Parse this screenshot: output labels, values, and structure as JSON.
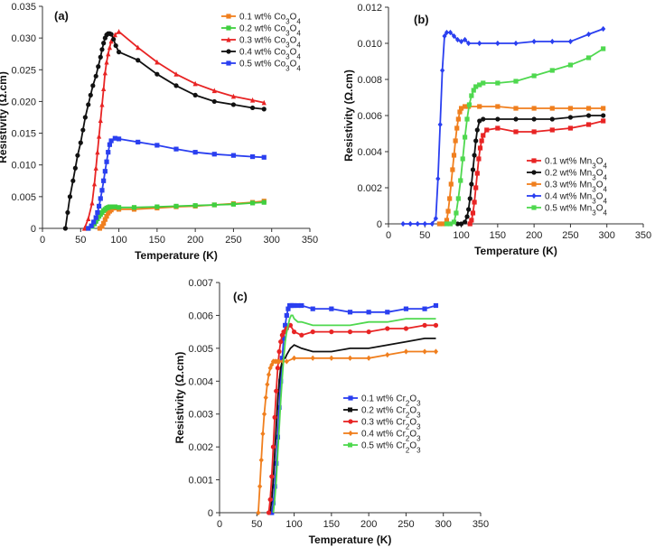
{
  "chart_data": [
    {
      "type": "line",
      "panel_label": "(a)",
      "xlabel": "Temperature (K)",
      "ylabel": "Resistivity (Ω.cm)",
      "xlim": [
        0,
        350
      ],
      "ylim": [
        0,
        0.035
      ],
      "xticks": [
        "0",
        "50",
        "100",
        "150",
        "200",
        "250",
        "300",
        "350"
      ],
      "yticks": [
        "0",
        "0.005",
        "0.010",
        "0.015",
        "0.020",
        "0.025",
        "0.030",
        "0.035"
      ],
      "legend_position": "top-right",
      "series": [
        {
          "name": "0.1 wt% Co3O4",
          "color": "#f07f1e",
          "marker": "square",
          "x": [
            75,
            78,
            80,
            82,
            84,
            86,
            88,
            90,
            100,
            120,
            150,
            175,
            200,
            225,
            250,
            275,
            290
          ],
          "y": [
            0,
            0.0003,
            0.0008,
            0.0014,
            0.0019,
            0.0024,
            0.0027,
            0.0029,
            0.003,
            0.003,
            0.0032,
            0.0034,
            0.0035,
            0.0037,
            0.0039,
            0.0041,
            0.0043
          ]
        },
        {
          "name": "0.2 wt% Co3O4",
          "color": "#3fcf3f",
          "marker": "square",
          "x": [
            60,
            65,
            68,
            70,
            72,
            74,
            76,
            78,
            80,
            82,
            84,
            86,
            88,
            90,
            95,
            100,
            120,
            150,
            175,
            200,
            225,
            250,
            275,
            290
          ],
          "y": [
            0,
            0.0003,
            0.0007,
            0.0011,
            0.0015,
            0.0019,
            0.0022,
            0.0025,
            0.0028,
            0.003,
            0.0032,
            0.0033,
            0.0034,
            0.0034,
            0.0034,
            0.0033,
            0.0033,
            0.0034,
            0.0035,
            0.0036,
            0.0037,
            0.0038,
            0.004,
            0.0041
          ]
        },
        {
          "name": "0.3 wt% Co3O4",
          "color": "#e82424",
          "marker": "triangle",
          "x": [
            55,
            60,
            65,
            68,
            70,
            72,
            74,
            76,
            78,
            80,
            82,
            84,
            86,
            88,
            90,
            95,
            100,
            125,
            150,
            175,
            200,
            225,
            250,
            275,
            290
          ],
          "y": [
            0,
            0.0015,
            0.004,
            0.007,
            0.0095,
            0.012,
            0.0145,
            0.017,
            0.0195,
            0.022,
            0.0245,
            0.0262,
            0.0275,
            0.0285,
            0.0295,
            0.0305,
            0.031,
            0.0285,
            0.0262,
            0.0243,
            0.0228,
            0.0217,
            0.0208,
            0.0202,
            0.0198
          ]
        },
        {
          "name": "0.4 wt% Co3O4",
          "color": "#111111",
          "marker": "circle",
          "x": [
            30,
            33,
            36,
            40,
            43,
            46,
            50,
            53,
            56,
            60,
            63,
            66,
            70,
            73,
            76,
            78,
            80,
            82,
            84,
            86,
            88,
            90,
            93,
            96,
            100,
            125,
            150,
            175,
            200,
            225,
            250,
            275,
            290
          ],
          "y": [
            0,
            0.0025,
            0.005,
            0.0075,
            0.0095,
            0.0115,
            0.0135,
            0.0155,
            0.0175,
            0.0195,
            0.021,
            0.0225,
            0.024,
            0.0255,
            0.027,
            0.0282,
            0.0292,
            0.03,
            0.0305,
            0.0307,
            0.0307,
            0.0306,
            0.0298,
            0.0288,
            0.0278,
            0.0265,
            0.0243,
            0.0225,
            0.021,
            0.02,
            0.0195,
            0.019,
            0.0188
          ]
        },
        {
          "name": "0.5 wt% Co3O4",
          "color": "#2a3ff0",
          "marker": "square",
          "x": [
            60,
            64,
            67,
            70,
            72,
            74,
            76,
            78,
            80,
            82,
            84,
            86,
            88,
            90,
            95,
            100,
            125,
            150,
            175,
            200,
            225,
            250,
            275,
            290
          ],
          "y": [
            0,
            0.0004,
            0.001,
            0.0017,
            0.0025,
            0.0035,
            0.0047,
            0.006,
            0.0075,
            0.009,
            0.0105,
            0.012,
            0.0132,
            0.0138,
            0.0142,
            0.0141,
            0.0136,
            0.0131,
            0.0125,
            0.012,
            0.0117,
            0.0115,
            0.0113,
            0.0112
          ]
        }
      ]
    },
    {
      "type": "line",
      "panel_label": "(b)",
      "xlabel": "Temperature (K)",
      "ylabel": "Resistivity (Ω.cm)",
      "xlim": [
        0,
        350
      ],
      "ylim": [
        0,
        0.012
      ],
      "xticks": [
        "0",
        "50",
        "100",
        "150",
        "200",
        "250",
        "300",
        "350"
      ],
      "yticks": [
        "0",
        "0.002",
        "0.004",
        "0.006",
        "0.008",
        "0.010",
        "0.012"
      ],
      "legend_position": "bottom-right",
      "series": [
        {
          "name": "0.1 wt% Mn3O4",
          "color": "#e82424",
          "marker": "square",
          "x": [
            112,
            114,
            116,
            118,
            120,
            122,
            124,
            126,
            128,
            130,
            135,
            150,
            175,
            200,
            225,
            250,
            275,
            295
          ],
          "y": [
            0,
            0.0002,
            0.0006,
            0.0012,
            0.002,
            0.0028,
            0.0036,
            0.0042,
            0.0046,
            0.0049,
            0.0052,
            0.0053,
            0.0051,
            0.0051,
            0.0052,
            0.0053,
            0.0055,
            0.0057
          ]
        },
        {
          "name": "0.2 wt% Mn3O4",
          "color": "#111111",
          "marker": "circle",
          "x": [
            95,
            100,
            105,
            108,
            110,
            112,
            114,
            116,
            118,
            120,
            122,
            125,
            130,
            150,
            175,
            200,
            225,
            250,
            275,
            295
          ],
          "y": [
            0,
            0,
            0.0001,
            0.0004,
            0.0008,
            0.0014,
            0.0022,
            0.003,
            0.0038,
            0.0046,
            0.0052,
            0.0057,
            0.0058,
            0.0058,
            0.0058,
            0.0058,
            0.0058,
            0.0059,
            0.006,
            0.006
          ]
        },
        {
          "name": "0.3 wt% Mn3O4",
          "color": "#f07f1e",
          "marker": "square",
          "x": [
            70,
            75,
            80,
            82,
            84,
            86,
            88,
            90,
            92,
            94,
            96,
            98,
            100,
            105,
            110,
            125,
            150,
            175,
            200,
            225,
            250,
            275,
            295
          ],
          "y": [
            0,
            0,
            0.0002,
            0.0007,
            0.0014,
            0.0022,
            0.003,
            0.0038,
            0.0046,
            0.0053,
            0.0058,
            0.0062,
            0.0064,
            0.0065,
            0.0065,
            0.0065,
            0.0065,
            0.0064,
            0.0064,
            0.0064,
            0.0064,
            0.0064,
            0.0064
          ]
        },
        {
          "name": "0.4 wt% Mn3O4",
          "color": "#2a3ff0",
          "marker": "diamond",
          "x": [
            20,
            30,
            40,
            50,
            60,
            65,
            68,
            71,
            74,
            77,
            80,
            85,
            90,
            95,
            100,
            105,
            110,
            125,
            150,
            175,
            200,
            225,
            250,
            275,
            295
          ],
          "y": [
            0,
            0,
            0,
            0,
            0,
            0.0003,
            0.0025,
            0.0055,
            0.0085,
            0.0104,
            0.0106,
            0.0106,
            0.0104,
            0.0102,
            0.0101,
            0.0102,
            0.01,
            0.01,
            0.01,
            0.01,
            0.0101,
            0.0101,
            0.0101,
            0.0105,
            0.0108
          ]
        },
        {
          "name": "0.5 wt% Mn3O4",
          "color": "#4fd84f",
          "marker": "square",
          "x": [
            80,
            85,
            90,
            93,
            96,
            99,
            102,
            105,
            108,
            111,
            114,
            117,
            120,
            125,
            130,
            150,
            175,
            200,
            225,
            250,
            275,
            295
          ],
          "y": [
            0,
            0,
            0.0001,
            0.0006,
            0.0014,
            0.0024,
            0.0036,
            0.0048,
            0.0058,
            0.0066,
            0.0071,
            0.0074,
            0.0076,
            0.0077,
            0.0078,
            0.0078,
            0.0079,
            0.0082,
            0.0085,
            0.0088,
            0.0092,
            0.0097
          ]
        }
      ]
    },
    {
      "type": "line",
      "panel_label": "(c)",
      "xlabel": "Temperature (K)",
      "ylabel": "Resistivity (Ω.cm)",
      "xlim": [
        0,
        350
      ],
      "ylim": [
        0,
        0.007
      ],
      "xticks": [
        "0",
        "50",
        "100",
        "150",
        "200",
        "250",
        "300",
        "350"
      ],
      "yticks": [
        "0",
        "0.001",
        "0.002",
        "0.003",
        "0.004",
        "0.005",
        "0.006",
        "0.007"
      ],
      "legend_position": "center-right",
      "series": [
        {
          "name": "0.1 wt% Cr2O3",
          "color": "#2a3ff0",
          "marker": "square",
          "x": [
            70,
            72,
            74,
            76,
            78,
            80,
            82,
            84,
            86,
            88,
            90,
            92,
            94,
            96,
            98,
            100,
            105,
            110,
            125,
            150,
            175,
            200,
            225,
            250,
            275,
            290
          ],
          "y": [
            0,
            0.0003,
            0.0008,
            0.0015,
            0.0023,
            0.0032,
            0.004,
            0.0047,
            0.0053,
            0.0057,
            0.006,
            0.0062,
            0.0063,
            0.0063,
            0.0063,
            0.0063,
            0.0063,
            0.0063,
            0.0062,
            0.0062,
            0.0061,
            0.0061,
            0.0061,
            0.0062,
            0.0062,
            0.0063
          ]
        },
        {
          "name": "0.2 wt% Cr2O3",
          "color": "#111111",
          "marker": "none",
          "x": [
            68,
            70,
            72,
            74,
            76,
            78,
            80,
            82,
            84,
            86,
            88,
            90,
            95,
            100,
            110,
            125,
            150,
            175,
            200,
            225,
            250,
            275,
            290
          ],
          "y": [
            0,
            0.0004,
            0.001,
            0.0018,
            0.0026,
            0.0034,
            0.004,
            0.0044,
            0.0046,
            0.0047,
            0.0047,
            0.0048,
            0.005,
            0.0051,
            0.005,
            0.0049,
            0.0049,
            0.005,
            0.005,
            0.0051,
            0.0052,
            0.0053,
            0.0053
          ]
        },
        {
          "name": "0.3 wt% Cr2O3",
          "color": "#e82424",
          "marker": "circle",
          "x": [
            66,
            68,
            70,
            72,
            74,
            76,
            78,
            80,
            82,
            84,
            86,
            88,
            90,
            95,
            100,
            110,
            125,
            150,
            175,
            200,
            225,
            250,
            275,
            290
          ],
          "y": [
            0,
            0.0004,
            0.0011,
            0.002,
            0.0029,
            0.0037,
            0.0044,
            0.0049,
            0.0052,
            0.0054,
            0.0055,
            0.0055,
            0.0056,
            0.0057,
            0.0055,
            0.0054,
            0.0055,
            0.0055,
            0.0055,
            0.0055,
            0.0056,
            0.0056,
            0.0057,
            0.0057
          ]
        },
        {
          "name": "0.4 wt% Cr2O3",
          "color": "#f07f1e",
          "marker": "diamond",
          "x": [
            52,
            54,
            56,
            58,
            60,
            62,
            64,
            66,
            68,
            70,
            72,
            74,
            76,
            78,
            80,
            85,
            90,
            100,
            125,
            150,
            175,
            200,
            225,
            250,
            275,
            290
          ],
          "y": [
            0,
            0.0008,
            0.0016,
            0.0024,
            0.003,
            0.0035,
            0.0039,
            0.0042,
            0.0044,
            0.0045,
            0.0046,
            0.0046,
            0.0046,
            0.0046,
            0.0046,
            0.0046,
            0.0046,
            0.0047,
            0.0047,
            0.0047,
            0.0047,
            0.0047,
            0.0048,
            0.0049,
            0.0049,
            0.0049
          ]
        },
        {
          "name": "0.5 wt% Cr2O3",
          "color": "#4fd84f",
          "marker": "none",
          "x": [
            72,
            74,
            76,
            78,
            80,
            82,
            84,
            86,
            88,
            90,
            92,
            94,
            96,
            98,
            100,
            105,
            110,
            125,
            150,
            175,
            200,
            225,
            250,
            275,
            290
          ],
          "y": [
            0,
            0.0004,
            0.001,
            0.0018,
            0.0026,
            0.0034,
            0.0041,
            0.0047,
            0.0052,
            0.0055,
            0.0057,
            0.0059,
            0.006,
            0.006,
            0.0059,
            0.0058,
            0.0058,
            0.0057,
            0.0057,
            0.0057,
            0.0058,
            0.0058,
            0.0059,
            0.0059,
            0.0059
          ]
        }
      ]
    }
  ]
}
